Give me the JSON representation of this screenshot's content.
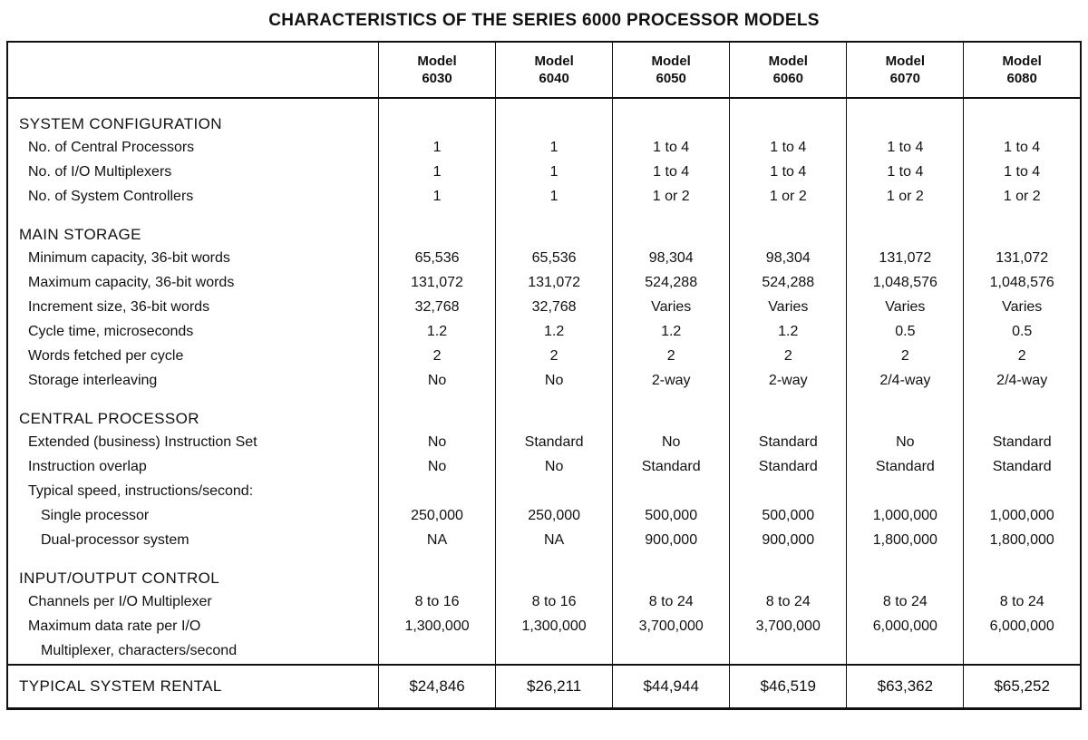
{
  "title": "CHARACTERISTICS OF THE SERIES 6000 PROCESSOR MODELS",
  "table": {
    "header": {
      "model_label": "Model",
      "models": [
        "6030",
        "6040",
        "6050",
        "6060",
        "6070",
        "6080"
      ]
    },
    "sections": [
      {
        "heading": "SYSTEM CONFIGURATION",
        "rows": [
          {
            "label": "No. of Central Processors",
            "indent": 1,
            "values": [
              "1",
              "1",
              "1 to 4",
              "1 to 4",
              "1 to 4",
              "1 to 4"
            ]
          },
          {
            "label": "No. of I/O Multiplexers",
            "indent": 1,
            "values": [
              "1",
              "1",
              "1 to 4",
              "1 to 4",
              "1 to 4",
              "1 to 4"
            ]
          },
          {
            "label": "No. of System Controllers",
            "indent": 1,
            "values": [
              "1",
              "1",
              "1 or 2",
              "1 or 2",
              "1 or 2",
              "1 or 2"
            ]
          }
        ]
      },
      {
        "heading": "MAIN STORAGE",
        "rows": [
          {
            "label": "Minimum capacity, 36-bit words",
            "indent": 1,
            "values": [
              "65,536",
              "65,536",
              "98,304",
              "98,304",
              "131,072",
              "131,072"
            ]
          },
          {
            "label": "Maximum capacity, 36-bit words",
            "indent": 1,
            "values": [
              "131,072",
              "131,072",
              "524,288",
              "524,288",
              "1,048,576",
              "1,048,576"
            ]
          },
          {
            "label": "Increment size, 36-bit words",
            "indent": 1,
            "values": [
              "32,768",
              "32,768",
              "Varies",
              "Varies",
              "Varies",
              "Varies"
            ]
          },
          {
            "label": "Cycle time, microseconds",
            "indent": 1,
            "values": [
              "1.2",
              "1.2",
              "1.2",
              "1.2",
              "0.5",
              "0.5"
            ]
          },
          {
            "label": "Words fetched per cycle",
            "indent": 1,
            "values": [
              "2",
              "2",
              "2",
              "2",
              "2",
              "2"
            ]
          },
          {
            "label": "Storage interleaving",
            "indent": 1,
            "values": [
              "No",
              "No",
              "2-way",
              "2-way",
              "2/4-way",
              "2/4-way"
            ]
          }
        ]
      },
      {
        "heading": "CENTRAL PROCESSOR",
        "rows": [
          {
            "label": "Extended (business) Instruction Set",
            "indent": 1,
            "values": [
              "No",
              "Standard",
              "No",
              "Standard",
              "No",
              "Standard"
            ]
          },
          {
            "label": "Instruction overlap",
            "indent": 1,
            "values": [
              "No",
              "No",
              "Standard",
              "Standard",
              "Standard",
              "Standard"
            ]
          },
          {
            "label": "Typical speed, instructions/second:",
            "indent": 1,
            "values": [
              "",
              "",
              "",
              "",
              "",
              ""
            ]
          },
          {
            "label": "Single processor",
            "indent": 2,
            "values": [
              "250,000",
              "250,000",
              "500,000",
              "500,000",
              "1,000,000",
              "1,000,000"
            ]
          },
          {
            "label": "Dual-processor system",
            "indent": 2,
            "values": [
              "NA",
              "NA",
              "900,000",
              "900,000",
              "1,800,000",
              "1,800,000"
            ]
          }
        ]
      },
      {
        "heading": "INPUT/OUTPUT CONTROL",
        "rows": [
          {
            "label": "Channels per I/O Multiplexer",
            "indent": 1,
            "values": [
              "8 to 16",
              "8 to 16",
              "8 to 24",
              "8 to 24",
              "8 to 24",
              "8 to 24"
            ]
          },
          {
            "label": "Maximum data rate per I/O",
            "indent": 1,
            "values": [
              "1,300,000",
              "1,300,000",
              "3,700,000",
              "3,700,000",
              "6,000,000",
              "6,000,000"
            ]
          },
          {
            "label": "Multiplexer, characters/second",
            "indent": 2,
            "values": [
              "",
              "",
              "",
              "",
              "",
              ""
            ]
          }
        ]
      }
    ],
    "footer_row": {
      "label": "TYPICAL SYSTEM RENTAL",
      "values": [
        "$24,846",
        "$26,211",
        "$44,944",
        "$46,519",
        "$63,362",
        "$65,252"
      ]
    }
  }
}
